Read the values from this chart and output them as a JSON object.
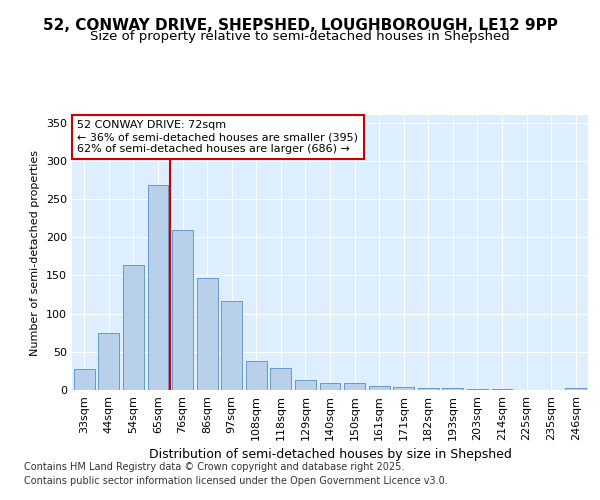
{
  "title_line1": "52, CONWAY DRIVE, SHEPSHED, LOUGHBOROUGH, LE12 9PP",
  "title_line2": "Size of property relative to semi-detached houses in Shepshed",
  "xlabel": "Distribution of semi-detached houses by size in Shepshed",
  "ylabel": "Number of semi-detached properties",
  "categories": [
    "33sqm",
    "44sqm",
    "54sqm",
    "65sqm",
    "76sqm",
    "86sqm",
    "97sqm",
    "108sqm",
    "118sqm",
    "129sqm",
    "140sqm",
    "150sqm",
    "161sqm",
    "171sqm",
    "182sqm",
    "193sqm",
    "203sqm",
    "214sqm",
    "225sqm",
    "235sqm",
    "246sqm"
  ],
  "values": [
    28,
    75,
    163,
    268,
    210,
    146,
    117,
    38,
    29,
    13,
    9,
    9,
    5,
    4,
    3,
    2,
    1,
    1,
    0,
    0,
    2
  ],
  "bar_color": "#b8d0ea",
  "bar_edge_color": "#6699cc",
  "vline_index": 3,
  "vline_color": "#cc0000",
  "annotation_text": "52 CONWAY DRIVE: 72sqm\n← 36% of semi-detached houses are smaller (395)\n62% of semi-detached houses are larger (686) →",
  "annotation_box_facecolor": "#ffffff",
  "annotation_box_edgecolor": "#cc0000",
  "ylim": [
    0,
    360
  ],
  "yticks": [
    0,
    50,
    100,
    150,
    200,
    250,
    300,
    350
  ],
  "fig_facecolor": "#ffffff",
  "plot_facecolor": "#ddeeff",
  "grid_color": "#ffffff",
  "title_fontsize": 11,
  "subtitle_fontsize": 9.5,
  "ylabel_fontsize": 8,
  "xlabel_fontsize": 9,
  "tick_fontsize": 8,
  "annotation_fontsize": 8,
  "footer_fontsize": 7,
  "footer_line1": "Contains HM Land Registry data © Crown copyright and database right 2025.",
  "footer_line2": "Contains public sector information licensed under the Open Government Licence v3.0."
}
